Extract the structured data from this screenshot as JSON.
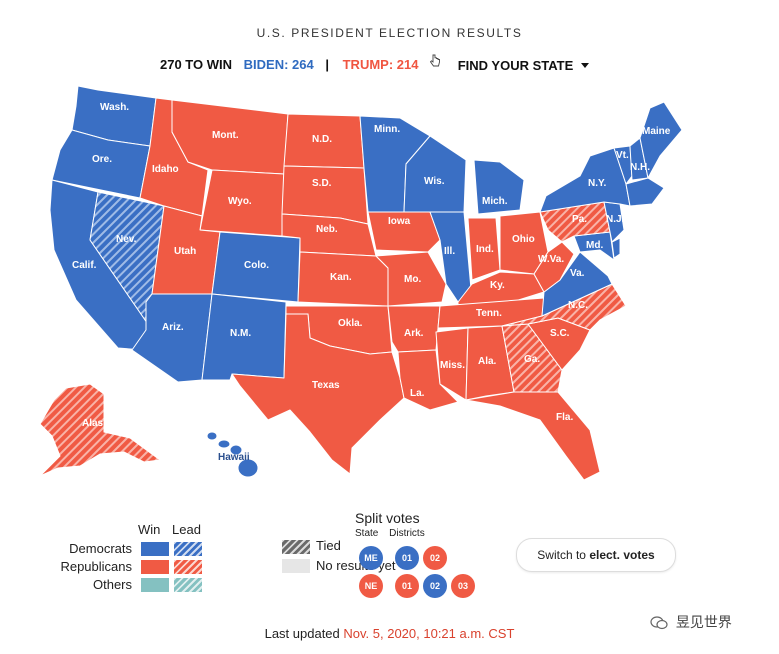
{
  "title": "U.S. PRESIDENT ELECTION RESULTS",
  "summary": {
    "to_win": "270 TO WIN",
    "biden": "BIDEN: 264",
    "separator": "|",
    "trump": "TRUMP: 214",
    "find_state": "FIND YOUR STATE"
  },
  "colors": {
    "dem_win": "#3a6fc4",
    "rep_win": "#f05a44",
    "others": "#84c1c1",
    "tied": "#6a6a6a",
    "no_results": "#e6e6e6",
    "alaska_hawaii_lead_rep": "#f4806f"
  },
  "states": {
    "wa": "Wash.",
    "or": "Ore.",
    "ca": "Calif.",
    "nv": "Nev.",
    "id": "Idaho",
    "mt": "Mont.",
    "wy": "Wyo.",
    "ut": "Utah",
    "co": "Colo.",
    "az": "Ariz.",
    "nm": "N.M.",
    "nd": "N.D.",
    "sd": "S.D.",
    "ne": "Neb.",
    "ks": "Kan.",
    "ok": "Okla.",
    "tx": "Texas",
    "mn": "Minn.",
    "ia": "Iowa",
    "mo": "Mo.",
    "ar": "Ark.",
    "la": "La.",
    "wi": "Wis.",
    "il": "Ill.",
    "mi": "Mich.",
    "in": "Ind.",
    "oh": "Ohio",
    "ky": "Ky.",
    "tn": "Tenn.",
    "ms": "Miss.",
    "al": "Ala.",
    "ga": "Ga.",
    "fl": "Fla.",
    "sc": "S.C.",
    "nc": "N.C.",
    "va": "Va.",
    "wv": "W.Va.",
    "pa": "Pa.",
    "ny": "N.Y.",
    "vt": "Vt.",
    "nh": "N.H.",
    "me": "Maine",
    "nj": "N.J.",
    "md": "Md.",
    "ak": "Alaska",
    "hi": "Hawaii"
  },
  "legend": {
    "win": "Win",
    "lead": "Lead",
    "democrats": "Democrats",
    "republicans": "Republicans",
    "others": "Others",
    "tied": "Tied",
    "no_results": "No results yet"
  },
  "split_votes": {
    "title": "Split votes",
    "state": "State",
    "districts": "Districts",
    "maine": {
      "state": "ME",
      "d1": "01",
      "d2": "02"
    },
    "nebraska": {
      "state": "NE",
      "d1": "01",
      "d2": "02",
      "d3": "03"
    }
  },
  "switch": {
    "prefix": "Switch to ",
    "bold": "elect. votes"
  },
  "updated": {
    "prefix": "Last updated ",
    "date": "Nov. 5, 2020, 10:21 a.m. CST"
  },
  "watermark": "昱见世界"
}
